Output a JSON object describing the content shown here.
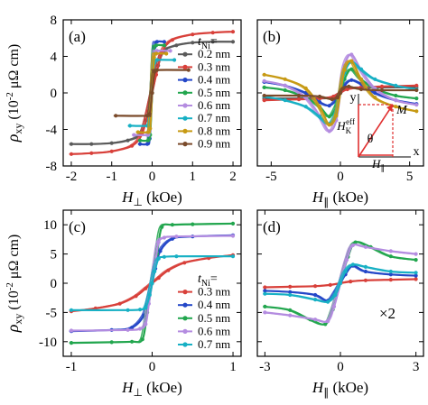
{
  "figure": {
    "ylabel_main": "ρ",
    "ylabel_sub": "xy",
    "ylabel_rest": " (10",
    "ylabel_exp": "-2",
    "ylabel_unit": " μΩ cm)"
  },
  "colors": {
    "0.2 nm": "#5a5a5a",
    "0.3 nm": "#d8403a",
    "0.4 nm": "#2447c8",
    "0.5 nm": "#22a64e",
    "0.6 nm": "#b48ce0",
    "0.7 nm": "#17b0c4",
    "0.8 nm": "#c79a14",
    "0.9 nm": "#7a4a2a",
    "dark": "#3d3d3d",
    "black": "#111111",
    "inset": "#e03030"
  },
  "chart_data": [
    {
      "type": "line",
      "panel": "(a)",
      "xlabel_main": "H",
      "xlabel_sub": "⊥",
      "xlabel_unit": " (kOe)",
      "xlim": [
        -2.2,
        2.2
      ],
      "ylim": [
        -8,
        8
      ],
      "xticks": [
        -2,
        -1,
        0,
        1,
        2
      ],
      "yticks": [
        -8,
        -4,
        0,
        4,
        8
      ],
      "legend_title": "t",
      "legend_title_sub": "Ni",
      "legend_title_eq": "=",
      "legend_position": "right",
      "series": [
        {
          "name": "0.2 nm",
          "x": [
            -2.0,
            -1.5,
            -1.0,
            -0.6,
            -0.3,
            -0.15,
            0.0,
            0.15,
            0.3,
            0.6,
            1.0,
            1.5,
            2.0
          ],
          "y": [
            -5.6,
            -5.6,
            -5.5,
            -5.2,
            -4.6,
            -3.0,
            0.0,
            3.0,
            4.6,
            5.2,
            5.5,
            5.6,
            5.6
          ]
        },
        {
          "name": "0.3 nm",
          "x": [
            -2.0,
            -1.5,
            -1.0,
            -0.5,
            -0.25,
            -0.1,
            0.0,
            0.1,
            0.25,
            0.5,
            1.0,
            1.5,
            2.0
          ],
          "y": [
            -6.7,
            -6.6,
            -6.4,
            -5.8,
            -4.5,
            -2.0,
            0.0,
            2.0,
            4.5,
            5.8,
            6.4,
            6.6,
            6.7
          ]
        },
        {
          "name": "0.4 nm",
          "x": [
            -0.3,
            -0.12,
            -0.06,
            0.0,
            0.06,
            0.12,
            0.3
          ],
          "y": [
            -5.6,
            -5.6,
            -5.0,
            0.0,
            5.0,
            5.6,
            5.6
          ]
        },
        {
          "name": "0.5 nm",
          "x": [
            -0.3,
            -0.1,
            -0.05,
            0.0,
            0.05,
            0.1,
            0.3
          ],
          "y": [
            -5.2,
            -5.2,
            -4.6,
            0.0,
            4.6,
            5.2,
            5.2
          ]
        },
        {
          "name": "0.6 nm",
          "x": [
            -0.45,
            -0.12,
            -0.06,
            0.0,
            0.06,
            0.12,
            0.45
          ],
          "y": [
            -4.6,
            -4.6,
            -4.2,
            0.0,
            4.2,
            4.6,
            4.6
          ]
        },
        {
          "name": "0.7 nm",
          "x": [
            -0.55,
            -0.12,
            -0.06,
            0.0,
            0.06,
            0.12,
            0.55
          ],
          "y": [
            -3.6,
            -3.6,
            -3.3,
            0.0,
            3.3,
            3.6,
            3.6
          ]
        },
        {
          "name": "0.8 nm",
          "x": [
            -0.35,
            -0.1,
            -0.05,
            0.0,
            0.05,
            0.1,
            0.35
          ],
          "y": [
            -4.3,
            -4.3,
            -3.9,
            0.0,
            3.9,
            4.3,
            4.3
          ]
        },
        {
          "name": "0.9 nm",
          "x": [
            -0.9,
            -0.12,
            -0.06,
            0.0,
            0.06,
            0.12,
            0.9
          ],
          "y": [
            -2.5,
            -2.5,
            -2.3,
            0.0,
            2.3,
            2.5,
            2.5
          ]
        }
      ]
    },
    {
      "type": "line",
      "panel": "(b)",
      "xlabel_main": "H",
      "xlabel_sub": "∥",
      "xlabel_unit": " (kOe)",
      "xlim": [
        -6,
        6
      ],
      "ylim": [
        -8,
        8
      ],
      "xticks": [
        -5,
        0,
        5
      ],
      "yticks": [
        -8,
        -4,
        0,
        4,
        8
      ],
      "series": [
        {
          "name": "0.2 nm",
          "x": [
            -5.5,
            -3,
            -1.5,
            -0.5,
            0,
            0.5,
            1.5,
            3,
            5.5
          ],
          "y": [
            -0.6,
            -0.6,
            -0.6,
            -0.5,
            0.0,
            0.5,
            0.6,
            0.6,
            0.6
          ]
        },
        {
          "name": "0.3 nm",
          "x": [
            -5.5,
            -3,
            -1.5,
            -0.5,
            0,
            0.5,
            1.5,
            3,
            5.5
          ],
          "y": [
            -0.8,
            -0.7,
            -0.6,
            -0.4,
            0.0,
            0.4,
            0.6,
            0.7,
            0.8
          ]
        },
        {
          "name": "0.4 nm",
          "x": [
            -5.5,
            -4,
            -2.5,
            -1.5,
            -0.8,
            -0.3,
            0,
            0.3,
            0.8,
            1.5,
            2.5,
            4,
            5.5
          ],
          "y": [
            1.2,
            0.8,
            0.0,
            -1.0,
            -1.4,
            -0.8,
            0.0,
            0.8,
            1.4,
            1.0,
            0.0,
            -0.8,
            -1.2
          ]
        },
        {
          "name": "0.5 nm",
          "x": [
            -5.5,
            -4,
            -2.5,
            -1.5,
            -0.8,
            -0.3,
            0,
            0.3,
            0.8,
            1.5,
            2.5,
            4,
            5.5
          ],
          "y": [
            0.6,
            0.3,
            -0.5,
            -1.5,
            -2.6,
            -1.5,
            0.0,
            1.5,
            2.6,
            1.5,
            0.5,
            -0.3,
            -0.6
          ]
        },
        {
          "name": "0.6 nm",
          "x": [
            -5.5,
            -4,
            -2.5,
            -1.5,
            -0.8,
            -0.3,
            0,
            0.3,
            0.8,
            1.5,
            2.5,
            4,
            5.5
          ],
          "y": [
            1.3,
            0.8,
            -0.5,
            -2.5,
            -4.2,
            -3.0,
            0.0,
            3.0,
            4.2,
            2.5,
            0.5,
            -0.8,
            -1.3
          ]
        },
        {
          "name": "0.7 nm",
          "x": [
            -5.5,
            -4,
            -2.5,
            -1.5,
            -0.8,
            -0.3,
            0,
            0.3,
            0.8,
            1.5,
            2.5,
            4,
            5.5
          ],
          "y": [
            -0.4,
            -0.8,
            -1.5,
            -2.6,
            -3.4,
            -2.2,
            0.0,
            2.2,
            3.4,
            2.6,
            1.5,
            0.8,
            0.4
          ]
        },
        {
          "name": "0.8 nm",
          "x": [
            -5.5,
            -4,
            -2.5,
            -1.5,
            -0.8,
            -0.3,
            0,
            0.3,
            0.8,
            1.5,
            2.5,
            4,
            5.5
          ],
          "y": [
            2.0,
            1.5,
            0.5,
            -1.5,
            -3.5,
            -2.5,
            0.0,
            2.5,
            3.5,
            1.5,
            -0.5,
            -1.5,
            -2.0
          ]
        },
        {
          "name": "0.9 nm",
          "x": [
            -5.5,
            -3,
            -1.5,
            -0.6,
            -0.2,
            0,
            0.2,
            0.6,
            1.5,
            3,
            5.5
          ],
          "y": [
            -0.3,
            -0.3,
            -0.4,
            -0.7,
            -0.5,
            0.0,
            0.5,
            0.7,
            0.4,
            0.3,
            0.3
          ]
        }
      ],
      "inset": {
        "axis_y": "y",
        "axis_x": "x",
        "vector_m": "M",
        "field_total": "H",
        "field_k": "H",
        "field_k_sub": "K",
        "field_k_sup": "eff",
        "angle": "θ",
        "field_par": "H",
        "field_par_sub": "∥"
      }
    },
    {
      "type": "line",
      "panel": "(c)",
      "xlabel_main": "H",
      "xlabel_sub": "⊥",
      "xlabel_unit": " (kOe)",
      "xlim": [
        -1.1,
        1.1
      ],
      "ylim": [
        -12.5,
        12.5
      ],
      "xticks": [
        -1,
        0,
        1
      ],
      "yticks": [
        -10,
        -5,
        0,
        5,
        10
      ],
      "legend_title": "t",
      "legend_title_sub": "Ni",
      "legend_title_eq": "=",
      "legend_position": "bottom-right",
      "series": [
        {
          "name": "0.3 nm",
          "x": [
            -1.0,
            -0.7,
            -0.4,
            -0.2,
            -0.08,
            0.0,
            0.08,
            0.2,
            0.4,
            0.7,
            1.0
          ],
          "y": [
            -4.8,
            -4.3,
            -3.5,
            -2.2,
            -0.9,
            0.0,
            0.9,
            2.2,
            3.5,
            4.3,
            4.8
          ]
        },
        {
          "name": "0.4 nm",
          "x": [
            -1.0,
            -0.5,
            -0.25,
            -0.1,
            -0.04,
            0.0,
            0.04,
            0.1,
            0.25,
            0.5,
            1.0
          ],
          "y": [
            -8.2,
            -8.0,
            -7.6,
            -5.5,
            -2.5,
            0.0,
            2.5,
            5.5,
            7.6,
            8.0,
            8.2
          ]
        },
        {
          "name": "0.5 nm",
          "x": [
            -1.0,
            -0.5,
            -0.25,
            -0.12,
            -0.06,
            0.0,
            0.06,
            0.12,
            0.25,
            0.5,
            1.0
          ],
          "y": [
            -10.2,
            -10.1,
            -10.0,
            -9.6,
            -5.0,
            0.0,
            5.0,
            9.6,
            10.0,
            10.1,
            10.2
          ]
        },
        {
          "name": "0.6 nm",
          "x": [
            -1.0,
            -0.3,
            -0.15,
            -0.08,
            -0.04,
            0.0,
            0.04,
            0.08,
            0.15,
            0.3,
            1.0
          ],
          "y": [
            -8.1,
            -8.0,
            -7.8,
            -7.0,
            -3.5,
            0.0,
            3.5,
            7.0,
            7.8,
            8.0,
            8.1
          ]
        },
        {
          "name": "0.7 nm",
          "x": [
            -1.0,
            -0.3,
            -0.15,
            -0.08,
            -0.03,
            0.0,
            0.03,
            0.08,
            0.15,
            0.3,
            1.0
          ],
          "y": [
            -4.6,
            -4.6,
            -4.5,
            -4.2,
            -2.0,
            0.0,
            2.0,
            4.2,
            4.5,
            4.6,
            4.6
          ]
        }
      ]
    },
    {
      "type": "line",
      "panel": "(d)",
      "xlabel_main": "H",
      "xlabel_sub": "∥",
      "xlabel_unit": " (kOe)",
      "xlim": [
        -3.3,
        3.3
      ],
      "ylim": [
        -12.5,
        12.5
      ],
      "xticks": [
        -3,
        0,
        3
      ],
      "yticks": [
        -10,
        -5,
        0,
        5,
        10
      ],
      "annotation": "×2",
      "series": [
        {
          "name": "0.3 nm",
          "x": [
            -3.0,
            -2.0,
            -1.0,
            -0.4,
            0.0,
            0.4,
            1.0,
            2.0,
            3.0
          ],
          "y": [
            -0.7,
            -0.6,
            -0.5,
            -0.3,
            0.0,
            0.3,
            0.5,
            0.6,
            0.7
          ]
        },
        {
          "name": "0.4 nm",
          "x": [
            -3.0,
            -2.0,
            -1.0,
            -0.5,
            -0.2,
            0.0,
            0.2,
            0.5,
            1.0,
            2.0,
            3.0
          ],
          "y": [
            -1.3,
            -1.5,
            -2.0,
            -3.0,
            -1.5,
            0.0,
            1.5,
            3.0,
            2.0,
            1.5,
            1.3
          ]
        },
        {
          "name": "0.5 nm",
          "x": [
            -3.0,
            -2.0,
            -1.2,
            -0.6,
            -0.3,
            0.0,
            0.3,
            0.6,
            1.2,
            2.0,
            3.0
          ],
          "y": [
            -4.0,
            -4.6,
            -6.2,
            -7.0,
            -4.5,
            0.0,
            4.5,
            7.0,
            6.2,
            4.6,
            4.0
          ]
        },
        {
          "name": "0.6 nm",
          "x": [
            -3.0,
            -2.0,
            -1.0,
            -0.5,
            -0.25,
            0.0,
            0.25,
            0.5,
            1.0,
            2.0,
            3.0
          ],
          "y": [
            -5.0,
            -5.5,
            -6.2,
            -6.5,
            -4.0,
            0.0,
            4.0,
            6.5,
            6.2,
            5.5,
            5.0
          ]
        },
        {
          "name": "0.7 nm",
          "x": [
            -3.0,
            -2.0,
            -1.0,
            -0.5,
            -0.2,
            0.0,
            0.2,
            0.5,
            1.0,
            2.0,
            3.0
          ],
          "y": [
            -1.8,
            -2.0,
            -2.8,
            -3.2,
            -2.0,
            0.0,
            2.0,
            3.2,
            2.8,
            2.0,
            1.8
          ]
        }
      ]
    }
  ]
}
